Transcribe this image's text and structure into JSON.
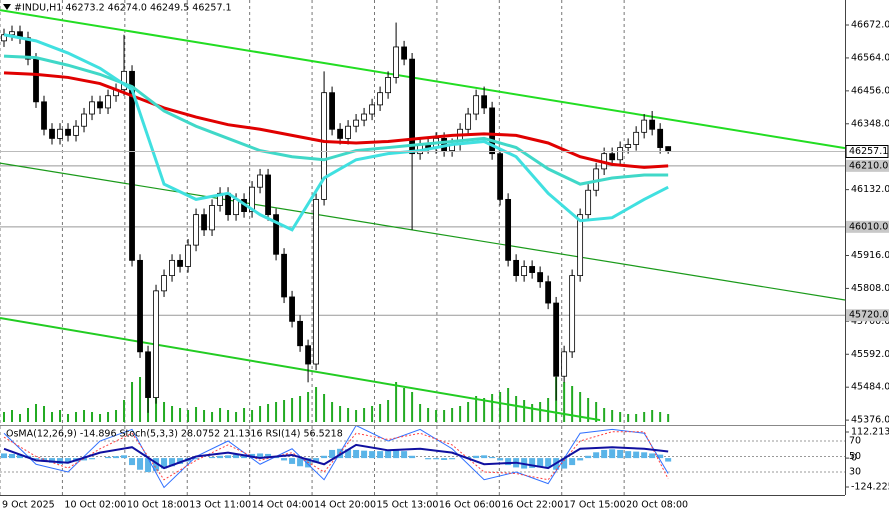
{
  "chart_data": [
    {
      "type": "candlestick",
      "title": "#INDU,H1 46273.2 46274.0 46249.5 46257.1",
      "xlim": [
        -0.5,
        105.1
      ],
      "ylim": [
        45360,
        46754
      ],
      "yticks": [
        {
          "value": 46672,
          "label": "46672.0"
        },
        {
          "value": 46564,
          "label": "46564.0"
        },
        {
          "value": 46456,
          "label": "46456.0"
        },
        {
          "value": 46348,
          "label": "46348.0"
        },
        {
          "value": 46132,
          "label": "46132.0"
        },
        {
          "value": 45916,
          "label": "45916.0"
        },
        {
          "value": 45808,
          "label": "45808.0"
        },
        {
          "value": 45700,
          "label": "45700.0"
        },
        {
          "value": 45592,
          "label": "45592.0"
        },
        {
          "value": 45484,
          "label": "45484.0"
        },
        {
          "value": 45376,
          "label": "45376.0"
        }
      ],
      "xticks": [
        {
          "value": -0.5,
          "label": "9 Oct 2025"
        },
        {
          "value": 7.3,
          "label": "10 Oct 02:00"
        },
        {
          "value": 15.1,
          "label": "10 Oct 18:00"
        },
        {
          "value": 22.9,
          "label": "13 Oct 11:00"
        },
        {
          "value": 30.7,
          "label": "14 Oct 04:00"
        },
        {
          "value": 38.5,
          "label": "14 Oct 20:00"
        },
        {
          "value": 46.3,
          "label": "15 Oct 13:00"
        },
        {
          "value": 54.1,
          "label": "16 Oct 06:00"
        },
        {
          "value": 61.9,
          "label": "16 Oct 22:00"
        },
        {
          "value": 69.7,
          "label": "17 Oct 15:00"
        },
        {
          "value": 77.5,
          "label": "20 Oct 08:00"
        }
      ],
      "open": [
        46620,
        46640,
        46650,
        46630,
        46560,
        46420,
        46330,
        46300,
        46330,
        46310,
        46340,
        46380,
        46420,
        46400,
        46440,
        46460,
        46520,
        45900,
        45600,
        45450,
        45800,
        45850,
        45900,
        45880,
        45950,
        46050,
        46000,
        46080,
        46120,
        46050,
        46100,
        46060,
        46140,
        46180,
        46050,
        45920,
        45780,
        45700,
        45620,
        45560,
        46100,
        46450,
        46330,
        46300,
        46340,
        46360,
        46380,
        46410,
        46450,
        46500,
        46600,
        46560,
        46250,
        46280,
        46270,
        46300,
        46260,
        46280,
        46330,
        46380,
        46440,
        46400,
        46250,
        46100,
        45900,
        45850,
        45880,
        45860,
        45830,
        45760,
        45520,
        45600,
        45850,
        46050,
        46130,
        46200,
        46250,
        46230,
        46270,
        46280,
        46320,
        46360,
        46330,
        46273.2
      ],
      "high": [
        46660,
        46670,
        46670,
        46650,
        46580,
        46440,
        46350,
        46350,
        46350,
        46360,
        46400,
        46440,
        46440,
        46460,
        46480,
        46640,
        46540,
        45920,
        45620,
        45820,
        45870,
        45920,
        45920,
        45970,
        46070,
        46070,
        46100,
        46140,
        46140,
        46120,
        46120,
        46160,
        46200,
        46200,
        46070,
        45940,
        45800,
        45720,
        45640,
        46120,
        46520,
        46470,
        46350,
        46360,
        46380,
        46400,
        46430,
        46470,
        46520,
        46680,
        46620,
        46580,
        46300,
        46300,
        46320,
        46320,
        46300,
        46350,
        46400,
        46460,
        46470,
        46420,
        46270,
        46120,
        45920,
        45900,
        45900,
        45880,
        45850,
        45780,
        45620,
        45870,
        46070,
        46150,
        46220,
        46270,
        46270,
        46290,
        46300,
        46340,
        46380,
        46390,
        46350,
        46274.0
      ],
      "low": [
        46600,
        46620,
        46610,
        46540,
        46400,
        46310,
        46280,
        46280,
        46290,
        46290,
        46320,
        46360,
        46380,
        46380,
        46420,
        46440,
        45880,
        45580,
        45400,
        45430,
        45780,
        45830,
        45860,
        45860,
        45930,
        45980,
        45980,
        46060,
        46030,
        46030,
        46040,
        46040,
        46120,
        46030,
        45900,
        45760,
        45680,
        45600,
        45500,
        45540,
        46080,
        46310,
        46280,
        46280,
        46320,
        46340,
        46360,
        46390,
        46430,
        46480,
        46540,
        46000,
        46230,
        46250,
        46250,
        46240,
        46240,
        46260,
        46310,
        46360,
        46380,
        46230,
        46080,
        45880,
        45830,
        45830,
        45840,
        45810,
        45740,
        45440,
        45500,
        45580,
        45830,
        46030,
        46110,
        46180,
        46210,
        46210,
        46250,
        46260,
        46300,
        46310,
        46250,
        46249.5
      ],
      "close": [
        46640,
        46650,
        46630,
        46560,
        46420,
        46330,
        46300,
        46330,
        46310,
        46340,
        46380,
        46420,
        46400,
        46440,
        46460,
        46520,
        45900,
        45600,
        45450,
        45800,
        45850,
        45900,
        45880,
        45950,
        46050,
        46000,
        46080,
        46120,
        46050,
        46100,
        46060,
        46140,
        46180,
        46050,
        45920,
        45780,
        45700,
        45620,
        45560,
        46100,
        46450,
        46330,
        46300,
        46340,
        46360,
        46380,
        46410,
        46450,
        46500,
        46600,
        46560,
        46250,
        46280,
        46270,
        46300,
        46260,
        46280,
        46330,
        46380,
        46440,
        46400,
        46250,
        46100,
        45900,
        45850,
        45880,
        45860,
        45830,
        45760,
        45520,
        45600,
        45850,
        46050,
        46130,
        46200,
        46250,
        46230,
        46270,
        46280,
        46320,
        46360,
        46330,
        46270,
        46257.1
      ],
      "volume": [
        10,
        12,
        8,
        14,
        18,
        16,
        10,
        12,
        8,
        10,
        12,
        10,
        8,
        10,
        12,
        22,
        40,
        45,
        38,
        30,
        20,
        16,
        14,
        12,
        15,
        12,
        10,
        14,
        12,
        10,
        14,
        12,
        16,
        18,
        20,
        22,
        24,
        26,
        30,
        35,
        28,
        20,
        16,
        14,
        12,
        14,
        16,
        18,
        22,
        40,
        34,
        30,
        18,
        14,
        12,
        12,
        14,
        16,
        20,
        26,
        24,
        28,
        30,
        34,
        26,
        22,
        18,
        20,
        24,
        45,
        40,
        36,
        30,
        24,
        20,
        14,
        12,
        10,
        8,
        8,
        10,
        12,
        10,
        8
      ],
      "volume_lim": [
        0,
        50
      ],
      "volume_color": "#22aa22",
      "ma_x": [
        0,
        4,
        8,
        12,
        16,
        20,
        24,
        28,
        32,
        36,
        40,
        44,
        48,
        52,
        56,
        60,
        64,
        68,
        72,
        76,
        80,
        83
      ],
      "ma_series": [
        {
          "color": "#e00000",
          "values": [
            46515,
            46510,
            46500,
            46480,
            46440,
            46400,
            46370,
            46345,
            46330,
            46310,
            46290,
            46285,
            46290,
            46300,
            46310,
            46315,
            46310,
            46285,
            46240,
            46215,
            46205,
            46210
          ]
        },
        {
          "color": "#40d8c8",
          "values": [
            46570,
            46565,
            46540,
            46510,
            46470,
            46390,
            46340,
            46300,
            46260,
            46240,
            46230,
            46260,
            46270,
            46280,
            46290,
            46300,
            46270,
            46200,
            46150,
            46170,
            46180,
            46180
          ]
        },
        {
          "color": "#40e0e0",
          "values": [
            46640,
            46620,
            46580,
            46530,
            46460,
            46150,
            46100,
            46120,
            46050,
            46000,
            46170,
            46230,
            46250,
            46260,
            46280,
            46290,
            46240,
            46120,
            46030,
            46040,
            46100,
            46140
          ]
        }
      ],
      "trend_lines": [
        {
          "color": "#22dd22",
          "x": [
            -0.5,
            105.1
          ],
          "y": [
            46721,
            46268
          ]
        },
        {
          "color": "#1a9a1a",
          "x": [
            -0.5,
            105.1
          ],
          "y": [
            46219,
            45770
          ]
        },
        {
          "color": "#22cc22",
          "x": [
            -0.5,
            74.5
          ],
          "y": [
            45711,
            45376
          ]
        }
      ],
      "levels": [
        {
          "value": 46210,
          "label": "46210.0"
        },
        {
          "value": 46010,
          "label": "46010.0"
        },
        {
          "value": 45720,
          "label": "45720.0"
        }
      ],
      "last_price": 46257.1
    },
    {
      "type": "oscillator",
      "title": "OsMA(12,26,9) -14.896 Stoch(5,3,3) 28.0752 21.1316 RSI(14) 56.5218",
      "ylim": [
        -158.6,
        129.4
      ],
      "yticks": [
        112.213,
        0,
        -124.225
      ],
      "y2lim": [
        0.3,
        86.8
      ],
      "y2ticks": [
        70,
        50,
        30
      ],
      "histogram": [
        20,
        18,
        15,
        10,
        -5,
        -15,
        -20,
        -25,
        -20,
        -15,
        -10,
        -5,
        0,
        5,
        8,
        12,
        -30,
        -50,
        -60,
        -55,
        -45,
        -35,
        -25,
        -15,
        -5,
        0,
        5,
        10,
        12,
        15,
        15,
        18,
        20,
        18,
        5,
        -10,
        -25,
        -35,
        -40,
        -20,
        10,
        35,
        40,
        38,
        35,
        32,
        30,
        30,
        32,
        35,
        30,
        10,
        0,
        -5,
        -5,
        -8,
        -5,
        0,
        5,
        10,
        12,
        5,
        -10,
        -30,
        -40,
        -45,
        -42,
        -40,
        -38,
        -50,
        -45,
        -30,
        -10,
        10,
        25,
        35,
        38,
        35,
        30,
        28,
        25,
        20,
        15,
        -14.896
      ],
      "histogram_color": "#5ab4e8",
      "x": [
        0,
        4,
        8,
        12,
        16,
        20,
        24,
        28,
        32,
        36,
        40,
        44,
        48,
        52,
        56,
        60,
        64,
        68,
        72,
        76,
        80,
        83
      ],
      "series": [
        {
          "color": "#3070ff",
          "axis": "y2",
          "values": [
            80,
            40,
            30,
            70,
            85,
            10,
            50,
            70,
            40,
            60,
            20,
            90,
            70,
            85,
            60,
            20,
            30,
            15,
            80,
            85,
            80,
            28.0752
          ]
        },
        {
          "color": "#ff4040",
          "axis": "y2",
          "values": [
            75,
            50,
            35,
            60,
            80,
            20,
            45,
            65,
            45,
            55,
            30,
            80,
            72,
            80,
            65,
            30,
            28,
            20,
            70,
            82,
            82,
            21.1316
          ]
        },
        {
          "color": "#1010a0",
          "axis": "y2",
          "values": [
            60,
            45,
            42,
            55,
            62,
            35,
            50,
            55,
            48,
            52,
            40,
            65,
            58,
            60,
            55,
            40,
            42,
            35,
            60,
            62,
            60,
            56.5218
          ]
        }
      ]
    }
  ]
}
